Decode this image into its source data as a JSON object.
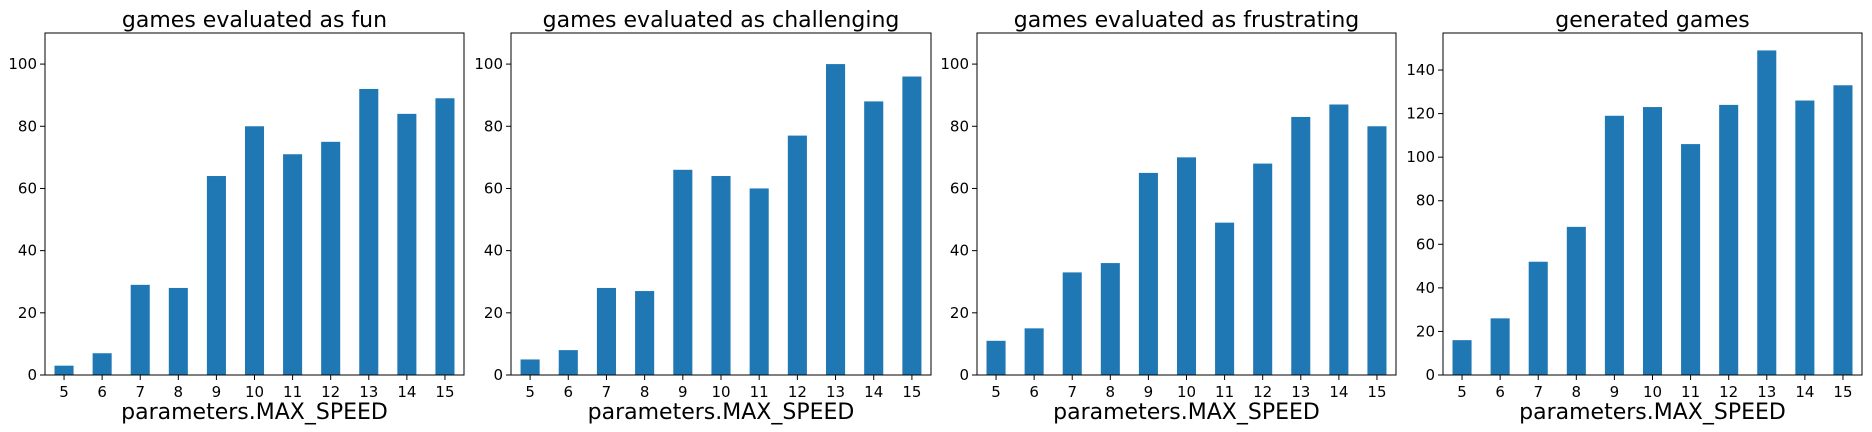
{
  "chart_data": [
    {
      "type": "bar",
      "title": "games evaluated as fun",
      "xlabel": "parameters.MAX_SPEED",
      "ylabel": "",
      "categories": [
        "5",
        "6",
        "7",
        "8",
        "9",
        "10",
        "11",
        "12",
        "13",
        "14",
        "15"
      ],
      "values": [
        3,
        7,
        29,
        28,
        64,
        80,
        71,
        75,
        92,
        84,
        89
      ],
      "ylim": [
        0,
        110
      ],
      "yticks": [
        0,
        20,
        40,
        60,
        80,
        100
      ],
      "color": "#1f77b4",
      "grid": false
    },
    {
      "type": "bar",
      "title": "games evaluated as challenging",
      "xlabel": "parameters.MAX_SPEED",
      "ylabel": "",
      "categories": [
        "5",
        "6",
        "7",
        "8",
        "9",
        "10",
        "11",
        "12",
        "13",
        "14",
        "15"
      ],
      "values": [
        5,
        8,
        28,
        27,
        66,
        64,
        60,
        77,
        100,
        88,
        96
      ],
      "ylim": [
        0,
        110
      ],
      "yticks": [
        0,
        20,
        40,
        60,
        80,
        100
      ],
      "color": "#1f77b4",
      "grid": false
    },
    {
      "type": "bar",
      "title": "games evaluated as frustrating",
      "xlabel": "parameters.MAX_SPEED",
      "ylabel": "",
      "categories": [
        "5",
        "6",
        "7",
        "8",
        "9",
        "10",
        "11",
        "12",
        "13",
        "14",
        "15"
      ],
      "values": [
        11,
        15,
        33,
        36,
        65,
        70,
        49,
        68,
        83,
        87,
        80
      ],
      "ylim": [
        0,
        110
      ],
      "yticks": [
        0,
        20,
        40,
        60,
        80,
        100
      ],
      "color": "#1f77b4",
      "grid": false
    },
    {
      "type": "bar",
      "title": "generated games",
      "xlabel": "parameters.MAX_SPEED",
      "ylabel": "",
      "categories": [
        "5",
        "6",
        "7",
        "8",
        "9",
        "10",
        "11",
        "12",
        "13",
        "14",
        "15"
      ],
      "values": [
        16,
        26,
        52,
        68,
        119,
        123,
        106,
        124,
        149,
        126,
        133
      ],
      "ylim": [
        0,
        157
      ],
      "yticks": [
        0,
        20,
        40,
        60,
        80,
        100,
        120,
        140
      ],
      "color": "#1f77b4",
      "grid": false
    }
  ]
}
